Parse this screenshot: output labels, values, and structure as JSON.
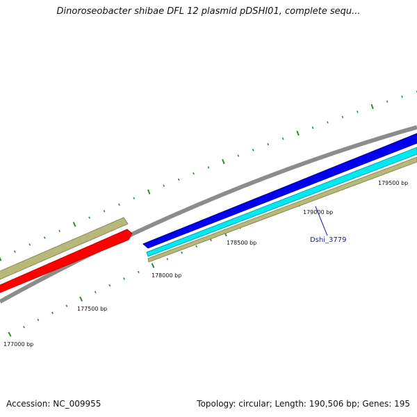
{
  "title": "Dinoroseobacter shibae DFL 12 plasmid pDSHI01, complete sequ...",
  "position_labels": [
    "177000 bp",
    "177500 bp",
    "178000 bp",
    "178500 bp",
    "179000 bp",
    "179500 bp"
  ],
  "gene_label": "Dshi_3779",
  "footer": {
    "accession": "Accession: NC_009955",
    "summary": "Topology: circular; Length: 190,506 bp; Genes: 195"
  },
  "colors": {
    "backbone": "#8c8c8c",
    "feature_olive": "#b8b87a",
    "feature_red": "#ff0000",
    "feature_blue": "#0000ee",
    "feature_cyan": "#00e8f0",
    "tick": "#2a8a2a",
    "gene_label": "#1a1aaa"
  }
}
